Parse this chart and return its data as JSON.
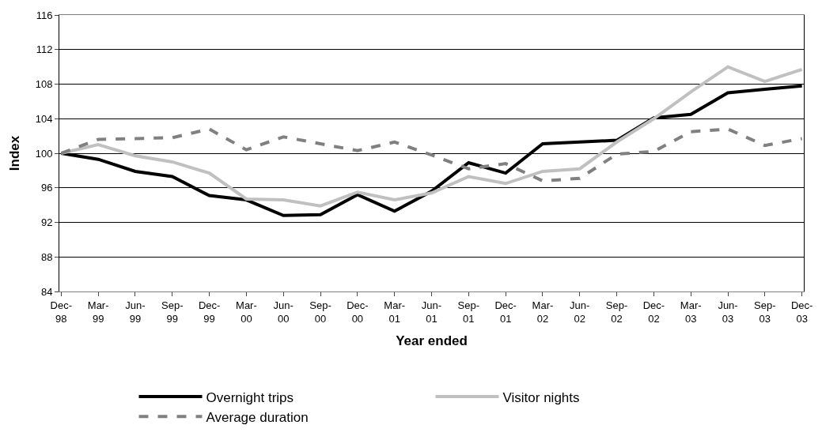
{
  "chart_data": {
    "type": "line",
    "xlabel": "Year ended",
    "ylabel": "Index",
    "categories": [
      "Dec-98",
      "Mar-99",
      "Jun-99",
      "Sep-99",
      "Dec-99",
      "Mar-00",
      "Jun-00",
      "Sep-00",
      "Dec-00",
      "Mar-01",
      "Jun-01",
      "Sep-01",
      "Dec-01",
      "Mar-02",
      "Jun-02",
      "Sep-02",
      "Dec-02",
      "Mar-03",
      "Jun-03",
      "Sep-03",
      "Dec-03"
    ],
    "series": [
      {
        "name": "Overnight trips",
        "color": "#000000",
        "line_style": "solid",
        "values": [
          100,
          99.3,
          97.9,
          97.3,
          95.1,
          94.6,
          92.8,
          92.9,
          95.2,
          93.3,
          95.6,
          98.9,
          97.7,
          101.1,
          101.3,
          101.5,
          104.1,
          104.5,
          107.0,
          107.4,
          107.8
        ]
      },
      {
        "name": "Visitor nights",
        "color": "#c0c0c0",
        "line_style": "solid",
        "values": [
          100,
          101.0,
          99.7,
          99.0,
          97.7,
          94.7,
          94.6,
          93.9,
          95.5,
          94.6,
          95.4,
          97.3,
          96.5,
          97.9,
          98.2,
          101.3,
          104.0,
          107.1,
          110.0,
          108.3,
          109.7
        ]
      },
      {
        "name": "Average duration",
        "color": "#808080",
        "line_style": "dashed",
        "values": [
          100,
          101.6,
          101.7,
          101.8,
          102.8,
          100.4,
          101.9,
          101.1,
          100.3,
          101.3,
          99.8,
          98.2,
          98.8,
          96.8,
          97.1,
          99.9,
          100.2,
          102.5,
          102.8,
          100.9,
          101.7
        ]
      }
    ],
    "ylim": [
      84,
      116
    ],
    "yticks": [
      84,
      88,
      92,
      96,
      100,
      104,
      108,
      112,
      116
    ],
    "grid": "y",
    "legend": "bottom",
    "marker": "none"
  }
}
